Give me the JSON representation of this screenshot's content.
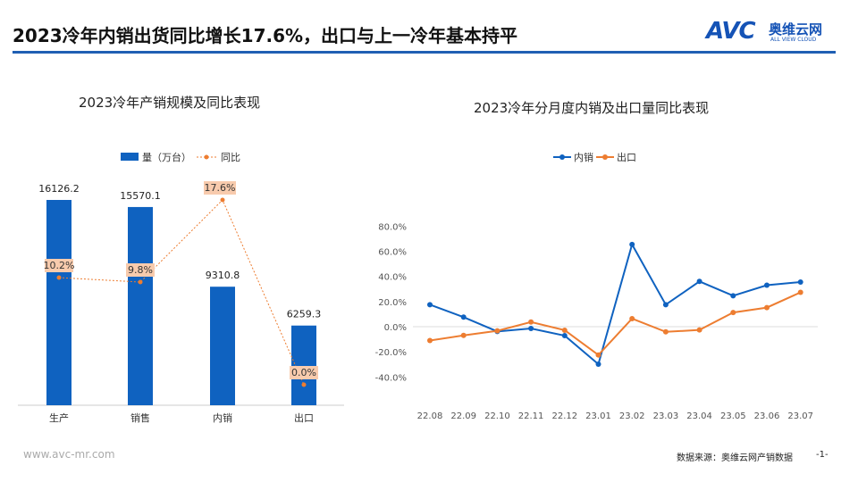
{
  "header": {
    "title": "2023冷年内销出货同比增长17.6%，出口与上一冷年基本持平",
    "logo_cn": "奥维云网",
    "logo_en": "ALL VIEW CLOUD",
    "logo_mark": "AVC"
  },
  "footer": {
    "website": "www.avc-mr.com",
    "source": "数据来源：奥维云网产销数据",
    "page": "-1-"
  },
  "colors": {
    "blue": "#0f62c0",
    "orange": "#ed7d31",
    "rule": "#1f5fb3"
  },
  "chart_data": [
    {
      "type": "bar",
      "title": "2023冷年产销规模及同比表现",
      "categories": [
        "生产",
        "销售",
        "内销",
        "出口"
      ],
      "series": [
        {
          "name": "量（万台）",
          "type": "bar",
          "values": [
            16126.2,
            15570.1,
            9310.8,
            6259.3
          ],
          "labels": [
            "16126.2",
            "15570.1",
            "9310.8",
            "6259.3"
          ]
        },
        {
          "name": "同比",
          "type": "line",
          "values": [
            10.2,
            9.8,
            17.6,
            0.0
          ],
          "labels": [
            "10.2%",
            "9.8%",
            "17.6%",
            "0.0%"
          ]
        }
      ],
      "legend": "top"
    },
    {
      "type": "line",
      "title": "2023冷年分月度内销及出口量同比表现",
      "categories": [
        "22.08",
        "22.09",
        "22.10",
        "22.11",
        "22.12",
        "23.01",
        "23.02",
        "23.03",
        "23.04",
        "23.05",
        "23.06",
        "23.07"
      ],
      "series": [
        {
          "name": "内销",
          "values": [
            17.5,
            7.6,
            -3.8,
            -1.4,
            -7.1,
            -29.8,
            65.4,
            17.5,
            36.0,
            24.6,
            33.0,
            35.5
          ]
        },
        {
          "name": "出口",
          "values": [
            -11.0,
            -6.9,
            -3.3,
            3.7,
            -2.8,
            -22.5,
            6.4,
            -4.1,
            -2.6,
            11.3,
            15.2,
            27.3
          ]
        }
      ],
      "ylim": [
        -40,
        80
      ],
      "yticks": [
        "80.0%",
        "60.0%",
        "40.0%",
        "20.0%",
        "0.0%",
        "-20.0%",
        "-40.0%"
      ],
      "legend": "top"
    }
  ]
}
